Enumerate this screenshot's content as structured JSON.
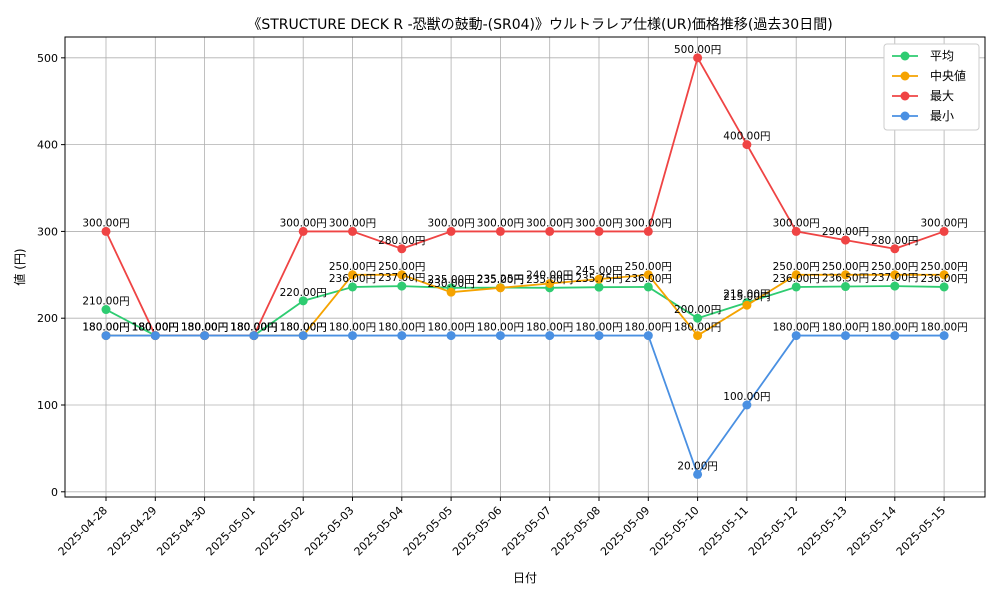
{
  "chart_data": {
    "type": "line",
    "title": "《STRUCTURE DECK R -恐獣の鼓動-(SR04)》ウルトラレア仕様(UR)価格推移(過去30日間)",
    "xlabel": "日付",
    "ylabel": "値 (円)",
    "ylim": [
      0,
      520
    ],
    "yticks": [
      "0",
      "100",
      "200",
      "300",
      "400",
      "500"
    ],
    "grid": true,
    "legend_position": "top-right",
    "categories": [
      "2025-04-28",
      "2025-04-29",
      "2025-04-30",
      "2025-05-01",
      "2025-05-02",
      "2025-05-03",
      "2025-05-04",
      "2025-05-05",
      "2025-05-06",
      "2025-05-07",
      "2025-05-08",
      "2025-05-09",
      "2025-05-10",
      "2025-05-11",
      "2025-05-12",
      "2025-05-13",
      "2025-05-14",
      "2025-05-15"
    ],
    "series": [
      {
        "name": "平均",
        "color": "#2ecc71",
        "values": [
          210,
          180,
          180,
          180,
          220,
          236,
          237,
          235,
          235.25,
          235,
          235.75,
          236,
          200,
          218,
          236,
          236.5,
          237,
          236
        ],
        "labels": [
          "210.00円",
          "180.00円",
          "180.00円",
          "180.00円",
          "220.00円",
          "236.00円",
          "237.00円",
          "235.00円",
          "235.25円",
          "235.00円",
          "235.75円",
          "236.00円",
          "200.00円",
          "218.00円",
          "236.00円",
          "236.50円",
          "237.00円",
          "236.00円"
        ]
      },
      {
        "name": "中央値",
        "color": "#f5a300",
        "values": [
          180,
          180,
          180,
          180,
          180,
          250,
          250,
          230,
          235,
          240,
          245,
          250,
          180,
          215,
          250,
          250,
          250,
          250
        ],
        "labels": [
          "180.00円",
          "180.00円",
          "180.00円",
          "180.00円",
          "180.00円",
          "250.00円",
          "250.00円",
          "230.00円",
          "235.00円",
          "240.00円",
          "245.00円",
          "250.00円",
          "180.00円",
          "215.00円",
          "250.00円",
          "250.00円",
          "250.00円",
          "250.00円"
        ]
      },
      {
        "name": "最大",
        "color": "#ef4444",
        "values": [
          300,
          180,
          180,
          180,
          300,
          300,
          280,
          300,
          300,
          300,
          300,
          300,
          500,
          400,
          300,
          290,
          280,
          300
        ],
        "labels": [
          "300.00円",
          "180.00円",
          "180.00円",
          "180.00円",
          "300.00円",
          "300.00円",
          "280.00円",
          "300.00円",
          "300.00円",
          "300.00円",
          "300.00円",
          "300.00円",
          "500.00円",
          "400.00円",
          "300.00円",
          "290.00円",
          "280.00円",
          "300.00円"
        ]
      },
      {
        "name": "最小",
        "color": "#4a90e2",
        "values": [
          180,
          180,
          180,
          180,
          180,
          180,
          180,
          180,
          180,
          180,
          180,
          180,
          20,
          100,
          180,
          180,
          180,
          180
        ],
        "labels": [
          "180.00円",
          "180.00円",
          "180.00円",
          "180.00円",
          "180.00円",
          "180.00円",
          "180.00円",
          "180.00円",
          "180.00円",
          "180.00円",
          "180.00円",
          "180.00円",
          "20.00円",
          "100.00円",
          "180.00円",
          "180.00円",
          "180.00円",
          "180.00円"
        ]
      }
    ]
  }
}
